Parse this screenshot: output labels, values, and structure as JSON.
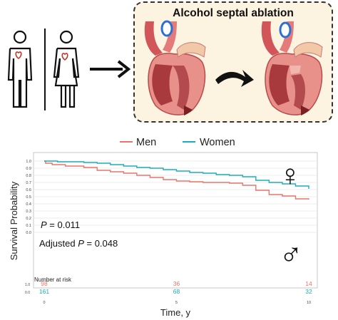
{
  "illustration": {
    "title": "Alcohol septal ablation",
    "icons": [
      "man-icon",
      "woman-icon",
      "arrow-right-icon",
      "heart-before-icon",
      "curved-arrow-icon",
      "heart-after-icon"
    ]
  },
  "colors": {
    "men": "#e8756a",
    "women": "#1aaeb8",
    "panel_bg": "#fdf3e1"
  },
  "legend": {
    "men": "Men",
    "women": "Women"
  },
  "chart_data": {
    "type": "line",
    "xlabel": "Time, y",
    "ylabel": "Survival Probability",
    "xlim": [
      0,
      10
    ],
    "ylim": [
      0,
      1.0
    ],
    "x_ticks": [
      "0",
      "5",
      "10"
    ],
    "y_ticks": [
      "0.0",
      "0.1",
      "0.2",
      "0.3",
      "0.4",
      "0.5",
      "0.6",
      "0.7",
      "0.8",
      "0.9",
      "1.0"
    ],
    "grid": true,
    "series": [
      {
        "name": "Men",
        "color": "#e8756a",
        "points": [
          [
            0,
            1.0
          ],
          [
            0.05,
            0.97
          ],
          [
            0.3,
            0.95
          ],
          [
            0.8,
            0.93
          ],
          [
            1.5,
            0.91
          ],
          [
            2.0,
            0.87
          ],
          [
            2.5,
            0.85
          ],
          [
            3.0,
            0.83
          ],
          [
            3.5,
            0.8
          ],
          [
            4.0,
            0.77
          ],
          [
            4.5,
            0.74
          ],
          [
            5.0,
            0.72
          ],
          [
            5.5,
            0.71
          ],
          [
            6.0,
            0.7
          ],
          [
            6.5,
            0.7
          ],
          [
            7.0,
            0.69
          ],
          [
            7.5,
            0.66
          ],
          [
            8.0,
            0.59
          ],
          [
            8.5,
            0.53
          ],
          [
            9.0,
            0.51
          ],
          [
            9.5,
            0.47
          ],
          [
            10.0,
            0.46
          ]
        ]
      },
      {
        "name": "Women",
        "color": "#1aaeb8",
        "points": [
          [
            0,
            1.0
          ],
          [
            0.5,
            0.99
          ],
          [
            1.0,
            0.99
          ],
          [
            1.5,
            0.98
          ],
          [
            2.0,
            0.97
          ],
          [
            2.5,
            0.95
          ],
          [
            3.0,
            0.93
          ],
          [
            3.5,
            0.91
          ],
          [
            4.0,
            0.9
          ],
          [
            4.5,
            0.88
          ],
          [
            5.0,
            0.86
          ],
          [
            5.5,
            0.84
          ],
          [
            6.0,
            0.83
          ],
          [
            6.5,
            0.81
          ],
          [
            7.0,
            0.8
          ],
          [
            7.5,
            0.78
          ],
          [
            8.0,
            0.73
          ],
          [
            8.5,
            0.7
          ],
          [
            9.0,
            0.68
          ],
          [
            9.5,
            0.65
          ],
          [
            10.0,
            0.61
          ]
        ]
      }
    ],
    "annotations": {
      "p_label": "P",
      "p_value": " = 0.011",
      "adj_prefix": "Adjusted ",
      "adj_p": "P",
      "adj_value": " = 0.048"
    },
    "risk_table": {
      "title": "Number at risk",
      "rows": [
        {
          "name": "Men",
          "color": "#e8756a",
          "values": [
            "98",
            "36",
            "14"
          ],
          "y_tick": "1.0"
        },
        {
          "name": "Women",
          "color": "#1aaeb8",
          "values": [
            "161",
            "68",
            "32"
          ],
          "y_tick": "0.0"
        }
      ],
      "x_ticks": [
        "0",
        "5",
        "10"
      ]
    },
    "symbols": {
      "women": "♀",
      "men": "♂"
    }
  }
}
